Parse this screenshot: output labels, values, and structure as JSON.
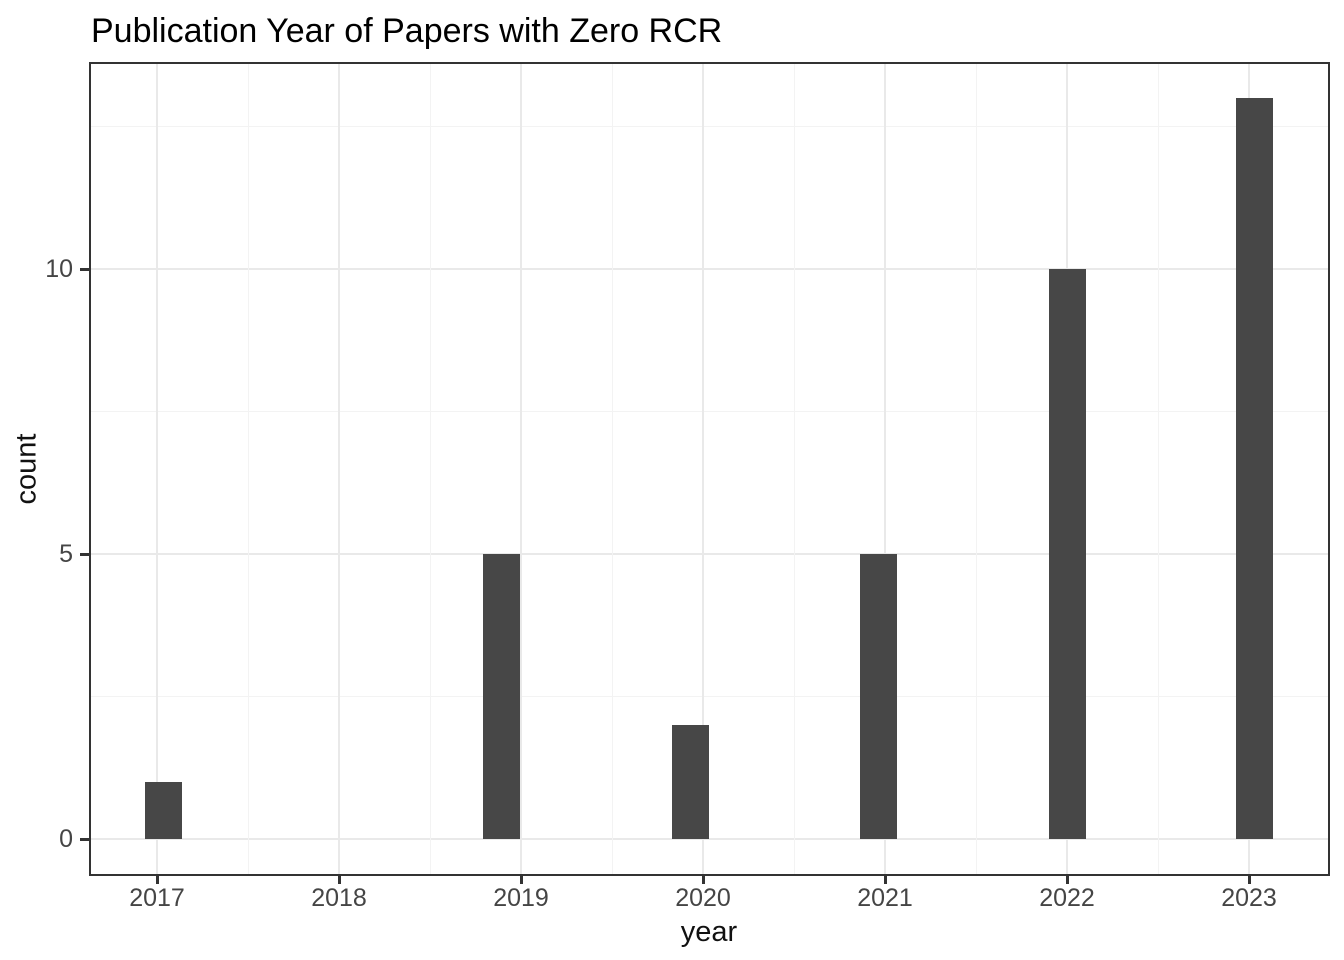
{
  "chart_data": {
    "type": "bar",
    "title": "Publication Year of Papers with Zero RCR",
    "xlabel": "year",
    "ylabel": "count",
    "categories": [
      "2017",
      "2018",
      "2019",
      "2020",
      "2021",
      "2022",
      "2023"
    ],
    "values": [
      1,
      0,
      5,
      2,
      5,
      10,
      13
    ],
    "y_ticks": [
      0,
      5,
      10
    ],
    "y_minor_ticks": [
      2.5,
      7.5,
      12.5
    ],
    "ylim": [
      -0.65,
      13.65
    ],
    "grid": "major and minor, light grey on white panel",
    "legend": "none",
    "bar_color": "#474747"
  },
  "style": {
    "bar_fill": "#474747",
    "panel_border": "#333333",
    "grid_major": "#e9e9e9",
    "grid_minor": "#f3f3f3",
    "tick_color": "#333333",
    "tick_label_color": "#454545",
    "axis_title_color": "#111111",
    "title_color": "#000000",
    "panel_bg": "#ffffff",
    "page_bg": "#ffffff"
  }
}
